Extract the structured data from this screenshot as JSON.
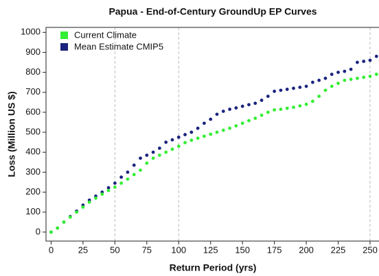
{
  "chart_data": {
    "type": "scatter",
    "title": "Papua - End-of-Century GroundUp EP Curves",
    "x_label": "Return Period (yrs)",
    "y_label": "Loss (Million US $)",
    "x": [
      0,
      5,
      10,
      15,
      20,
      25,
      30,
      35,
      40,
      45,
      50,
      55,
      60,
      65,
      70,
      75,
      80,
      85,
      90,
      95,
      100,
      105,
      110,
      115,
      120,
      125,
      130,
      135,
      140,
      145,
      150,
      155,
      160,
      165,
      170,
      175,
      180,
      185,
      190,
      195,
      200,
      205,
      210,
      215,
      220,
      225,
      230,
      235,
      240,
      245,
      250,
      255
    ],
    "series": [
      {
        "name": "Current Climate",
        "color": "#33ee33",
        "values": [
          0,
          20,
          50,
          75,
          100,
          125,
          150,
          170,
          190,
          208,
          225,
          245,
          265,
          288,
          310,
          345,
          370,
          385,
          400,
          415,
          430,
          448,
          460,
          470,
          480,
          490,
          500,
          510,
          520,
          532,
          545,
          558,
          570,
          585,
          600,
          612,
          615,
          620,
          625,
          632,
          640,
          655,
          680,
          710,
          730,
          745,
          760,
          765,
          770,
          775,
          780,
          790
        ]
      },
      {
        "name": "Mean Estimate CMIP5",
        "color": "#1a237e",
        "values": [
          0,
          20,
          50,
          78,
          105,
          135,
          160,
          180,
          200,
          222,
          245,
          275,
          300,
          335,
          370,
          385,
          400,
          420,
          450,
          462,
          475,
          488,
          500,
          520,
          545,
          565,
          590,
          605,
          615,
          622,
          630,
          638,
          645,
          660,
          680,
          705,
          710,
          715,
          720,
          725,
          730,
          750,
          760,
          770,
          790,
          800,
          805,
          815,
          850,
          855,
          860,
          880
        ]
      }
    ],
    "xlim": [
      -4,
      257
    ],
    "ylim": [
      -45,
      1025
    ],
    "xticks": [
      0,
      25,
      50,
      75,
      100,
      125,
      150,
      175,
      200,
      225,
      250
    ],
    "yticks": [
      0,
      100,
      200,
      300,
      400,
      500,
      600,
      700,
      800,
      900,
      1000
    ],
    "x_gridlines": [
      50,
      100,
      250
    ],
    "legend": "upper-left"
  }
}
